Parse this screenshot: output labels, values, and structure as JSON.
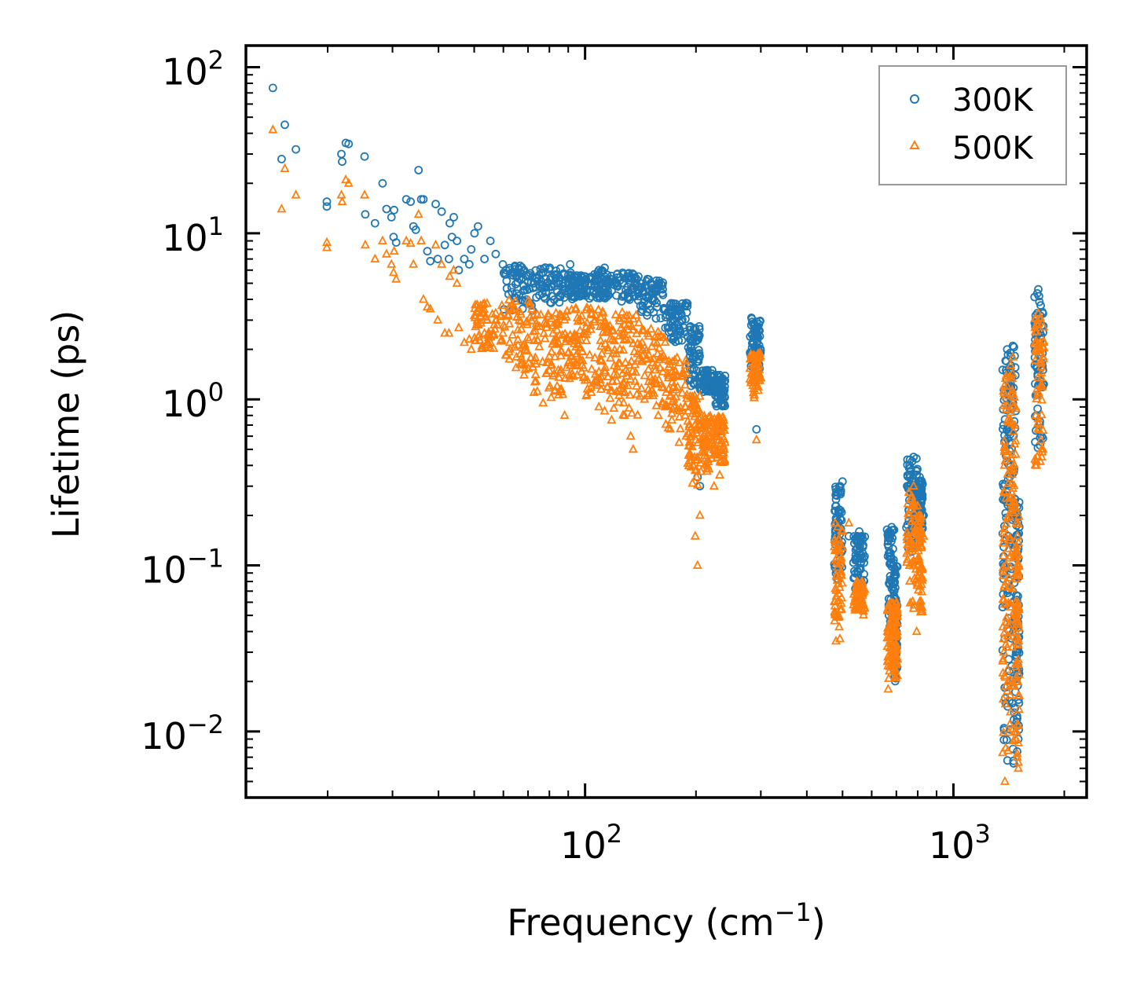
{
  "chart_data": {
    "type": "scatter",
    "title": "",
    "xlabel": "Frequency (cm",
    "xlabel_sup": "−1",
    "xlabel_close": ")",
    "ylabel": "Lifetime (ps)",
    "xscale": "log",
    "yscale": "log",
    "xlim": [
      12,
      2300
    ],
    "ylim": [
      0.004,
      135
    ],
    "x_major_ticks": [
      {
        "value": 100,
        "base": "10",
        "exp": "2"
      },
      {
        "value": 1000,
        "base": "10",
        "exp": "3"
      }
    ],
    "y_major_ticks": [
      {
        "value": 0.01,
        "base": "10",
        "exp": "−2"
      },
      {
        "value": 0.1,
        "base": "10",
        "exp": "−1"
      },
      {
        "value": 1,
        "base": "10",
        "exp": "0"
      },
      {
        "value": 10,
        "base": "10",
        "exp": "1"
      },
      {
        "value": 100,
        "base": "10",
        "exp": "2"
      }
    ],
    "legend_position": "top-right",
    "colors": {
      "s300": "#1f77b4",
      "s500": "#ff7f0e",
      "axis": "#000000",
      "legend_border": "#999999"
    },
    "series": [
      {
        "name": "300K",
        "marker": "circle",
        "points": [
          [
            14.2,
            75
          ],
          [
            15.3,
            45
          ],
          [
            15.0,
            28
          ],
          [
            16.4,
            32
          ],
          [
            19.9,
            15.5
          ],
          [
            19.9,
            14.5
          ],
          [
            21.8,
            30
          ],
          [
            21.9,
            27
          ],
          [
            22.4,
            35
          ],
          [
            22.8,
            34.5
          ],
          [
            25.2,
            29
          ],
          [
            26.9,
            11.5
          ],
          [
            25.3,
            13
          ],
          [
            28.2,
            20
          ],
          [
            28.9,
            14
          ],
          [
            29.8,
            12.5
          ],
          [
            30.3,
            13.8
          ],
          [
            30.2,
            9.5
          ],
          [
            30.7,
            8.8
          ],
          [
            32.7,
            16
          ],
          [
            33.6,
            15.5
          ],
          [
            34.2,
            11
          ],
          [
            34.7,
            10.5
          ],
          [
            35.3,
            24
          ],
          [
            35.9,
            16
          ],
          [
            36.4,
            16
          ],
          [
            37.3,
            7.8
          ],
          [
            38.0,
            6.8
          ],
          [
            39.3,
            15
          ],
          [
            40.8,
            13.5
          ],
          [
            39.8,
            7
          ],
          [
            41.6,
            8.5
          ],
          [
            42.7,
            7
          ],
          [
            42.9,
            11.5
          ],
          [
            43.5,
            9.5
          ],
          [
            44.0,
            12.5
          ],
          [
            44.9,
            9
          ],
          [
            45.4,
            6
          ],
          [
            47.0,
            7
          ],
          [
            48.5,
            6.5
          ],
          [
            49.1,
            8
          ],
          [
            50.1,
            10
          ],
          [
            51.2,
            11
          ],
          [
            53.3,
            7
          ],
          [
            55.3,
            9
          ],
          [
            57.2,
            7.5
          ],
          [
            59.8,
            6.5
          ],
          [
            62.4,
            6
          ],
          [
            65.1,
            5.5
          ],
          [
            68.3,
            6
          ],
          [
            72.6,
            5
          ],
          [
            76.9,
            5.8
          ],
          [
            80.2,
            6.2
          ],
          [
            84.6,
            5
          ],
          [
            88.0,
            4.5
          ],
          [
            91.1,
            6.5
          ],
          [
            95.2,
            5.2
          ],
          [
            100,
            5.5
          ],
          [
            104,
            5.3
          ],
          [
            109,
            6
          ],
          [
            113,
            6.2
          ],
          [
            118,
            4.5
          ],
          [
            122,
            5
          ],
          [
            128,
            4.2
          ],
          [
            133,
            5
          ],
          [
            138,
            5.3
          ],
          [
            145,
            4.8
          ],
          [
            152,
            4.5
          ],
          [
            158,
            5
          ],
          [
            165,
            3.5
          ],
          [
            172,
            3.6
          ],
          [
            180,
            3.4
          ],
          [
            188,
            3.8
          ],
          [
            195,
            2.5
          ],
          [
            199,
            1.8
          ],
          [
            202,
            0.34
          ],
          [
            205,
            0.3
          ],
          [
            209,
            1.2
          ],
          [
            215,
            1.5
          ],
          [
            224,
            1.3
          ],
          [
            232,
            1.4
          ],
          [
            238,
            1.1
          ],
          [
            283,
            3.1
          ],
          [
            288,
            2.8
          ],
          [
            292,
            0.66
          ],
          [
            298,
            2.4
          ],
          [
            480,
            0.25
          ],
          [
            500,
            0.32
          ],
          [
            520,
            0.15
          ],
          [
            545,
            0.14
          ],
          [
            555,
            0.16
          ],
          [
            565,
            0.15
          ],
          [
            665,
            0.14
          ],
          [
            680,
            0.17
          ],
          [
            700,
            0.06
          ],
          [
            760,
            0.4
          ],
          [
            780,
            0.45
          ],
          [
            795,
            0.2
          ],
          [
            810,
            0.34
          ],
          [
            830,
            0.2
          ],
          [
            1380,
            0.5
          ],
          [
            1390,
            1.5
          ],
          [
            1400,
            2
          ],
          [
            1410,
            0.15
          ],
          [
            1430,
            1.8
          ],
          [
            1450,
            2.1
          ],
          [
            1470,
            0.25
          ],
          [
            1480,
            0.03
          ],
          [
            1490,
            0.012
          ],
          [
            1500,
            0.009
          ],
          [
            1680,
            0.8
          ],
          [
            1700,
            4.6
          ],
          [
            1720,
            3.2
          ],
          [
            1730,
            2.3
          ],
          [
            1750,
            1.5
          ]
        ],
        "bands": [
          [
            60,
            72,
            3.4,
            6.5
          ],
          [
            72,
            88,
            3.8,
            6.3
          ],
          [
            88,
            100,
            4.0,
            5.8
          ],
          [
            100,
            115,
            4.0,
            6.0
          ],
          [
            115,
            140,
            3.8,
            5.8
          ],
          [
            140,
            165,
            3.0,
            5.3
          ],
          [
            165,
            190,
            2.2,
            3.8
          ],
          [
            190,
            205,
            1.2,
            2.8
          ],
          [
            205,
            225,
            1.1,
            1.5
          ],
          [
            225,
            240,
            0.9,
            1.4
          ],
          [
            280,
            300,
            1.5,
            3.1
          ],
          [
            475,
            500,
            0.08,
            0.3
          ],
          [
            535,
            575,
            0.07,
            0.15
          ],
          [
            660,
            690,
            0.04,
            0.17
          ],
          [
            690,
            705,
            0.02,
            0.1
          ],
          [
            745,
            800,
            0.1,
            0.45
          ],
          [
            800,
            825,
            0.15,
            0.33
          ],
          [
            1360,
            1420,
            0.006,
            2.0
          ],
          [
            1420,
            1480,
            0.006,
            2.1
          ],
          [
            1480,
            1510,
            0.006,
            0.25
          ],
          [
            1660,
            1760,
            0.5,
            4.6
          ]
        ]
      },
      {
        "name": "500K",
        "marker": "triangle",
        "points": [
          [
            14.2,
            42
          ],
          [
            15.0,
            14
          ],
          [
            15.3,
            24.5
          ],
          [
            16.4,
            17
          ],
          [
            19.9,
            8.8
          ],
          [
            19.9,
            8.2
          ],
          [
            21.8,
            17
          ],
          [
            21.9,
            15.5
          ],
          [
            22.4,
            21
          ],
          [
            22.8,
            20
          ],
          [
            25.2,
            17
          ],
          [
            25.3,
            8.5
          ],
          [
            26.9,
            7
          ],
          [
            28.2,
            9
          ],
          [
            28.9,
            7.5
          ],
          [
            29.8,
            6.5
          ],
          [
            30.3,
            7.8
          ],
          [
            30.2,
            5.8
          ],
          [
            30.7,
            5.3
          ],
          [
            32.7,
            9
          ],
          [
            33.6,
            8.7
          ],
          [
            34.2,
            6.5
          ],
          [
            35.3,
            13
          ],
          [
            35.9,
            9
          ],
          [
            36.4,
            4
          ],
          [
            37.3,
            3.6
          ],
          [
            38.0,
            3.5
          ],
          [
            39.3,
            8.5
          ],
          [
            40.8,
            6.5
          ],
          [
            39.8,
            3
          ],
          [
            41.6,
            2.5
          ],
          [
            42.7,
            2.5
          ],
          [
            42.9,
            5.5
          ],
          [
            44.0,
            6
          ],
          [
            44.9,
            5
          ],
          [
            45.4,
            2.7
          ],
          [
            47.0,
            2.2
          ],
          [
            48.5,
            2.3
          ],
          [
            49.1,
            2
          ],
          [
            50.1,
            3.2
          ],
          [
            51.2,
            2.8
          ],
          [
            53.3,
            2.5
          ],
          [
            55.3,
            2.2
          ],
          [
            57.2,
            3.3
          ],
          [
            59.8,
            2.5
          ],
          [
            62.4,
            2.2
          ],
          [
            65.1,
            1.8
          ],
          [
            68.3,
            1.4
          ],
          [
            72.6,
            1.1
          ],
          [
            76.9,
            0.95
          ],
          [
            80.2,
            1.2
          ],
          [
            84.6,
            1.5
          ],
          [
            88.0,
            0.8
          ],
          [
            91.1,
            1.6
          ],
          [
            95.2,
            1.4
          ],
          [
            100,
            1.3
          ],
          [
            104,
            1.1
          ],
          [
            109,
            0.9
          ],
          [
            113,
            0.85
          ],
          [
            118,
            0.75
          ],
          [
            122,
            1.4
          ],
          [
            128,
            0.8
          ],
          [
            133,
            0.6
          ],
          [
            135,
            0.5
          ],
          [
            138,
            1.2
          ],
          [
            145,
            1.0
          ],
          [
            152,
            1.3
          ],
          [
            158,
            0.8
          ],
          [
            165,
            0.9
          ],
          [
            172,
            0.75
          ],
          [
            180,
            0.55
          ],
          [
            188,
            0.6
          ],
          [
            195,
            0.45
          ],
          [
            199,
            0.15
          ],
          [
            202,
            0.1
          ],
          [
            205,
            0.2
          ],
          [
            209,
            0.55
          ],
          [
            215,
            0.4
          ],
          [
            224,
            0.3
          ],
          [
            232,
            0.35
          ],
          [
            238,
            0.5
          ],
          [
            283,
            1.8
          ],
          [
            288,
            1.5
          ],
          [
            292,
            0.57
          ],
          [
            298,
            1.3
          ],
          [
            480,
            0.035
          ],
          [
            500,
            0.16
          ],
          [
            520,
            0.18
          ],
          [
            545,
            0.06
          ],
          [
            555,
            0.055
          ],
          [
            565,
            0.08
          ],
          [
            665,
            0.018
          ],
          [
            680,
            0.025
          ],
          [
            700,
            0.06
          ],
          [
            760,
            0.1
          ],
          [
            780,
            0.3
          ],
          [
            795,
            0.04
          ],
          [
            810,
            0.2
          ],
          [
            830,
            0.15
          ],
          [
            1380,
            0.005
          ],
          [
            1390,
            0.1
          ],
          [
            1400,
            1.2
          ],
          [
            1410,
            0.02
          ],
          [
            1430,
            1.6
          ],
          [
            1450,
            1.8
          ],
          [
            1470,
            0.01
          ],
          [
            1480,
            0.02
          ],
          [
            1490,
            0.007
          ],
          [
            1500,
            0.006
          ],
          [
            1680,
            0.4
          ],
          [
            1700,
            3.3
          ],
          [
            1720,
            2.2
          ],
          [
            1730,
            1.2
          ],
          [
            1750,
            0.5
          ]
        ],
        "bands": [
          [
            50,
            60,
            2.0,
            3.8
          ],
          [
            60,
            72,
            1.5,
            4.0
          ],
          [
            72,
            88,
            1.0,
            3.5
          ],
          [
            88,
            100,
            1.2,
            3.6
          ],
          [
            100,
            115,
            1.0,
            3.6
          ],
          [
            115,
            140,
            0.8,
            3.4
          ],
          [
            140,
            165,
            0.9,
            2.8
          ],
          [
            165,
            190,
            0.6,
            1.8
          ],
          [
            190,
            205,
            0.3,
            1.1
          ],
          [
            205,
            225,
            0.35,
            0.8
          ],
          [
            225,
            240,
            0.4,
            0.8
          ],
          [
            280,
            300,
            1.0,
            1.9
          ],
          [
            475,
            500,
            0.035,
            0.18
          ],
          [
            535,
            575,
            0.05,
            0.08
          ],
          [
            660,
            690,
            0.02,
            0.06
          ],
          [
            690,
            705,
            0.02,
            0.06
          ],
          [
            745,
            800,
            0.05,
            0.3
          ],
          [
            800,
            825,
            0.05,
            0.2
          ],
          [
            1360,
            1420,
            0.006,
            1.4
          ],
          [
            1420,
            1480,
            0.006,
            1.8
          ],
          [
            1480,
            1510,
            0.006,
            0.2
          ],
          [
            1660,
            1760,
            0.4,
            3.3
          ]
        ]
      }
    ]
  }
}
